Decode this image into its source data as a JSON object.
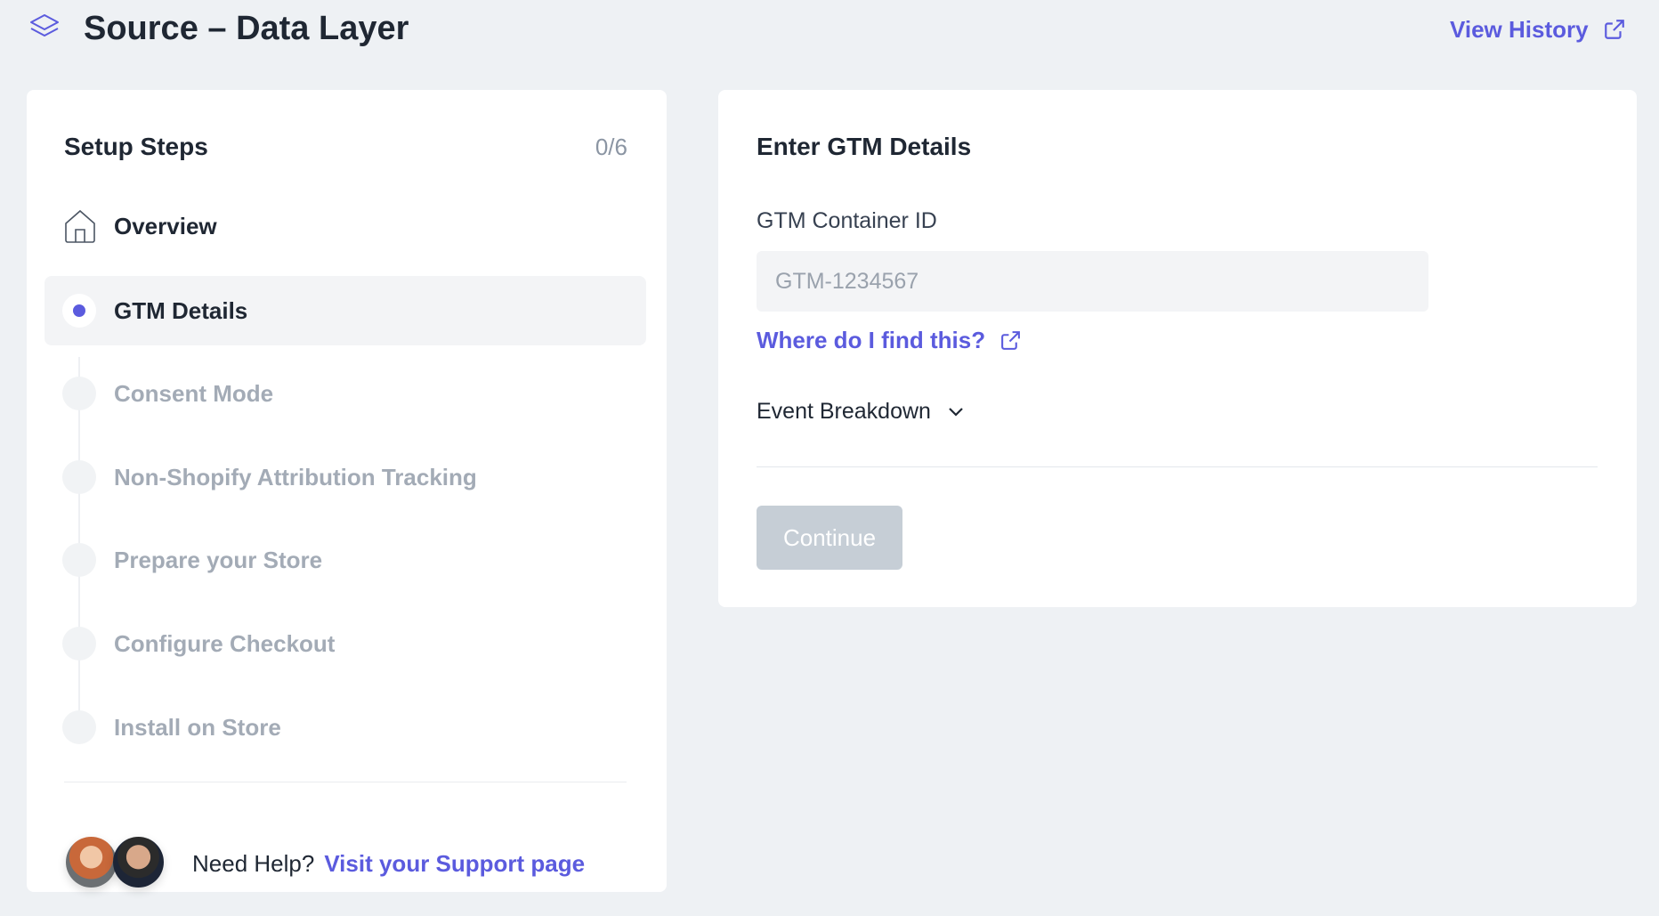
{
  "header": {
    "title": "Source – Data Layer",
    "view_history": "View History",
    "icon": "layers-icon"
  },
  "setup": {
    "title": "Setup Steps",
    "progress": "0/6",
    "steps": [
      {
        "label": "Overview",
        "state": "home"
      },
      {
        "label": "GTM Details",
        "state": "active"
      },
      {
        "label": "Consent Mode",
        "state": "pending"
      },
      {
        "label": "Non-Shopify Attribution Tracking",
        "state": "pending"
      },
      {
        "label": "Prepare your Store",
        "state": "pending"
      },
      {
        "label": "Configure Checkout",
        "state": "pending"
      },
      {
        "label": "Install on Store",
        "state": "pending"
      }
    ],
    "help": {
      "text": "Need Help?",
      "link": "Visit your Support page"
    }
  },
  "form": {
    "title": "Enter GTM Details",
    "container_label": "GTM Container ID",
    "container_placeholder": "GTM-1234567",
    "container_value": "",
    "find_link": "Where do I find this?",
    "event_breakdown": "Event Breakdown",
    "continue": "Continue"
  },
  "colors": {
    "accent": "#5b5bde",
    "background": "#eef1f4",
    "disabled_button": "#c6ced6"
  }
}
